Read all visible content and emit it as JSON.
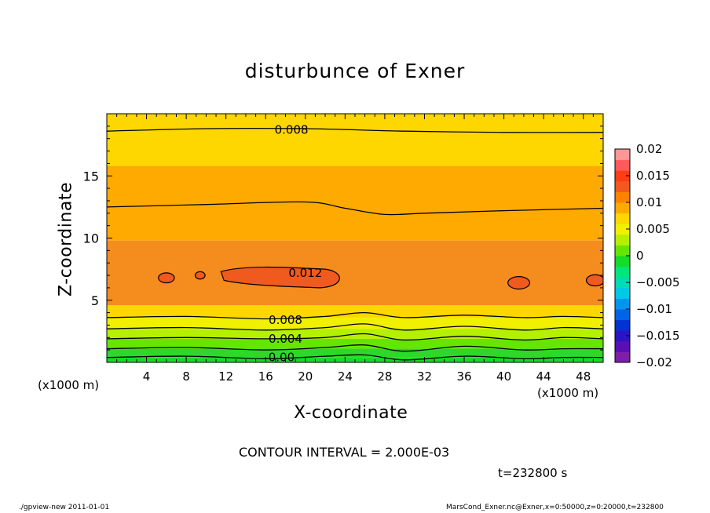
{
  "chart_data": {
    "type": "contour",
    "title": "disturbunce of Exner",
    "xlabel": "X-coordinate",
    "ylabel": "Z-coordinate",
    "x_unit_label": "(x1000 m)",
    "xlim": [
      0,
      50
    ],
    "ylim": [
      0,
      20
    ],
    "x_ticks": [
      4,
      8,
      12,
      16,
      20,
      24,
      28,
      32,
      36,
      40,
      44,
      48
    ],
    "y_ticks": [
      5,
      10,
      15
    ],
    "contour_interval_label": "CONTOUR INTERVAL = 2.000E-03",
    "time_label": "t=232800 s",
    "contour_labels": [
      {
        "text": "0.008",
        "x": 18.6,
        "z": 18.7
      },
      {
        "text": "0.012",
        "x": 20.0,
        "z": 7.2
      },
      {
        "text": "0.008",
        "x": 18.0,
        "z": 3.4
      },
      {
        "text": "0.004",
        "x": 18.0,
        "z": 1.9
      },
      {
        "text": "0.00",
        "x": 17.6,
        "z": 0.4
      }
    ],
    "contour_lines": [
      {
        "level": "0.008 (upper)",
        "x": [
          0,
          10,
          20,
          30,
          40,
          50
        ],
        "z": [
          18.6,
          18.8,
          18.8,
          18.6,
          18.5,
          18.5
        ]
      },
      {
        "level": "0.010",
        "x": [
          0,
          10,
          20,
          24,
          28,
          32,
          40,
          50
        ],
        "z": [
          12.5,
          12.7,
          12.9,
          12.4,
          11.9,
          12.0,
          12.2,
          12.4
        ]
      },
      {
        "level": "0.008",
        "x": [
          0,
          8,
          16,
          22,
          26,
          30,
          36,
          42,
          46,
          50
        ],
        "z": [
          3.6,
          3.7,
          3.5,
          3.7,
          4.0,
          3.6,
          3.8,
          3.6,
          3.7,
          3.6
        ]
      },
      {
        "level": "0.006",
        "x": [
          0,
          8,
          16,
          22,
          26,
          30,
          36,
          42,
          46,
          50
        ],
        "z": [
          2.7,
          2.8,
          2.6,
          2.8,
          3.1,
          2.6,
          2.9,
          2.6,
          2.8,
          2.7
        ]
      },
      {
        "level": "0.004",
        "x": [
          0,
          8,
          16,
          22,
          26,
          30,
          36,
          42,
          46,
          50
        ],
        "z": [
          1.9,
          2.0,
          1.9,
          2.0,
          2.3,
          1.8,
          2.1,
          1.8,
          2.0,
          1.9
        ]
      },
      {
        "level": "0.002",
        "x": [
          0,
          8,
          16,
          22,
          26,
          30,
          36,
          42,
          46,
          50
        ],
        "z": [
          1.1,
          1.2,
          1.0,
          1.2,
          1.4,
          0.9,
          1.3,
          1.0,
          1.1,
          1.1
        ]
      },
      {
        "level": "0.000",
        "x": [
          0,
          8,
          16,
          22,
          26,
          30,
          36,
          42,
          46,
          50
        ],
        "z": [
          0.4,
          0.5,
          0.3,
          0.5,
          0.6,
          0.2,
          0.5,
          0.3,
          0.4,
          0.4
        ]
      }
    ],
    "contour_closed_0012": [
      {
        "cx": 6.0,
        "cz": 6.8,
        "rx": 0.8,
        "rz": 0.4
      },
      {
        "cx": 9.4,
        "cz": 7.0,
        "rx": 0.5,
        "rz": 0.3
      },
      {
        "cx": 41.5,
        "cz": 6.4,
        "rx": 1.1,
        "rz": 0.5
      },
      {
        "cx": 49.2,
        "cz": 6.6,
        "rx": 0.9,
        "rz": 0.45
      }
    ],
    "colorbar": {
      "labels": [
        "0.02",
        "0.015",
        "0.01",
        "0.005",
        "0",
        "−0.005",
        "−0.01",
        "−0.015",
        "−0.02"
      ],
      "min": -0.02,
      "max": 0.02,
      "colors": [
        "#7d1fa8",
        "#5a0fb4",
        "#2a14c8",
        "#0032d2",
        "#0064e6",
        "#0096f0",
        "#00c8e6",
        "#00dcb4",
        "#00e678",
        "#14dc28",
        "#64e600",
        "#b4f000",
        "#f0f000",
        "#ffd700",
        "#ffaa00",
        "#ff8200",
        "#f05a1e",
        "#ff3c14",
        "#ff5a5a",
        "#ff9696"
      ]
    },
    "bands": [
      {
        "z0": 0.0,
        "z1": 0.4,
        "color": "#14dc28"
      },
      {
        "z0": 0.4,
        "z1": 1.1,
        "color": "#2ed82a"
      },
      {
        "z0": 1.1,
        "z1": 1.9,
        "color": "#64e600"
      },
      {
        "z0": 1.9,
        "z1": 2.7,
        "color": "#b4f000"
      },
      {
        "z0": 2.7,
        "z1": 3.6,
        "color": "#f0f000"
      },
      {
        "z0": 3.6,
        "z1": 4.6,
        "color": "#ffd700"
      },
      {
        "z0": 4.6,
        "z1": 9.8,
        "color": "#f58c1e"
      },
      {
        "z0": 9.8,
        "z1": 15.8,
        "color": "#ffaa00"
      },
      {
        "z0": 15.8,
        "z1": 20.0,
        "color": "#ffd700"
      }
    ]
  },
  "footer": {
    "left": "./gpview-new   2011-01-01",
    "right": "MarsCond_Exner.nc@Exner,x=0:50000,z=0:20000,t=232800"
  }
}
